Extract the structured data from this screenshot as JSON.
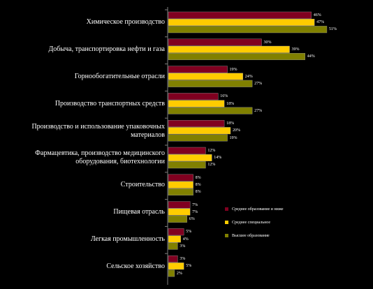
{
  "chart_data": {
    "type": "bar",
    "orientation": "horizontal",
    "categories": [
      "Химическое производство",
      "Добыча, транспортировка нефти и газа",
      "Горнообогатительные отрасли",
      "Производство транспортных средств",
      "Производство и использование упаковочных материалов",
      "Фармацевтика, производство медицинского оборудования, биотехнологии",
      "Строительство",
      "Пищевая отрасль",
      "Легкая промышленность",
      "Сельское хозяйство"
    ],
    "series": [
      {
        "name": "Среднее образование и ниже",
        "color": "#800020",
        "values": [
          46,
          30,
          19,
          16,
          18,
          12,
          8,
          7,
          5,
          3
        ]
      },
      {
        "name": "Среднее специальное",
        "color": "#FFCC00",
        "values": [
          47,
          39,
          24,
          18,
          20,
          14,
          8,
          7,
          4,
          5
        ]
      },
      {
        "name": "Высшее образование",
        "color": "#808000",
        "values": [
          51,
          44,
          27,
          27,
          19,
          12,
          8,
          6,
          3,
          2
        ]
      }
    ],
    "value_suffix": "%",
    "xlim": [
      0,
      55
    ],
    "grid": false,
    "legend_position": "bottom-right"
  }
}
